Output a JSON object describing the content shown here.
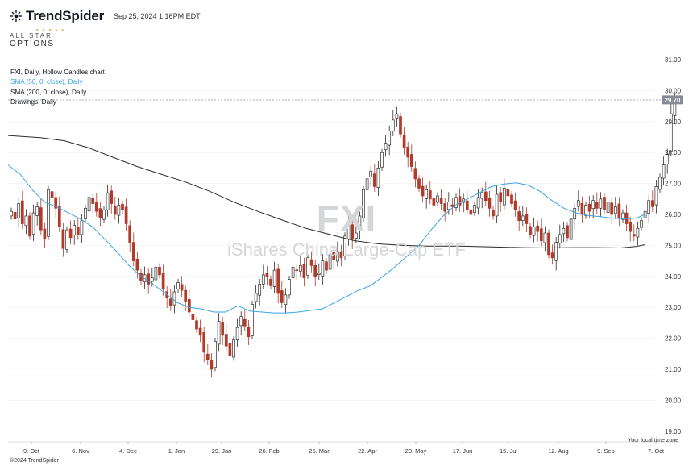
{
  "header": {
    "brand": "TrendSpider",
    "timestamp": "Sep 25, 2024 1:16PM EDT"
  },
  "badge": {
    "line1": "ALL STAR",
    "line2": "OPTIONS"
  },
  "legend": {
    "chart_title": "FXI, Daily, Hollow Candles chart",
    "sma50": "SMA (50, 0, close), Daily",
    "sma200": "SMA (200, 0, close), Daily",
    "drawings": "Drawings, Daily"
  },
  "watermark": {
    "ticker": "FXI",
    "name": "iShares China Large-Cap ETF"
  },
  "footer": {
    "local_time_zone": "Your local time zone",
    "copyright": "©2024 TrendSpider"
  },
  "colors": {
    "up": "#2d2d2d",
    "down": "#b13a2a",
    "sma50": "#3aa5e0",
    "sma200": "#2b2b2b",
    "price_badge": "#858a94"
  },
  "chart_data": {
    "type": "candlestick",
    "title": "FXI, Daily, Hollow Candles chart",
    "ylim": [
      18.8,
      31.4
    ],
    "y_ticks": [
      "31.00",
      "30.00",
      "29.00",
      "28.00",
      "27.00",
      "26.00",
      "25.00",
      "24.00",
      "23.00",
      "22.00",
      "21.00",
      "20.00",
      "19.00"
    ],
    "x_ticks": [
      "9. Oct",
      "6. Nov",
      "4. Dec",
      "1. Jan",
      "29. Jan",
      "26. Feb",
      "25. Mar",
      "22. Apr",
      "20. May",
      "17. Jun",
      "15. Jul",
      "12. Aug",
      "9. Sep",
      "7. Oct"
    ],
    "last_price": "29.70",
    "closes": [
      26.1,
      25.85,
      26.35,
      25.7,
      25.95,
      25.3,
      26.05,
      26.25,
      25.5,
      25.2,
      26.8,
      26.55,
      26.2,
      25.6,
      24.9,
      25.5,
      25.25,
      25.65,
      25.35,
      25.8,
      26.2,
      26.55,
      26.35,
      26.1,
      25.9,
      26.15,
      26.7,
      26.35,
      26.0,
      26.3,
      26.15,
      25.7,
      25.1,
      24.5,
      24.2,
      23.85,
      24.05,
      23.75,
      23.95,
      24.3,
      24.05,
      23.6,
      23.3,
      23.05,
      23.5,
      23.8,
      23.55,
      23.2,
      22.85,
      22.6,
      22.3,
      22.1,
      21.55,
      21.3,
      21.0,
      21.9,
      22.55,
      22.1,
      21.75,
      21.45,
      21.95,
      22.35,
      22.7,
      22.4,
      22.05,
      23.1,
      23.45,
      23.75,
      24.05,
      24.0,
      23.7,
      24.2,
      23.45,
      23.15,
      23.4,
      23.9,
      24.3,
      24.2,
      24.35,
      23.95,
      24.6,
      24.35,
      24.0,
      24.1,
      24.5,
      24.2,
      24.7,
      24.55,
      24.8,
      24.6,
      25.3,
      25.7,
      25.2,
      25.4,
      25.95,
      26.8,
      27.15,
      27.4,
      26.9,
      27.5,
      28.0,
      28.3,
      28.7,
      29.05,
      29.25,
      28.6,
      28.15,
      27.85,
      27.55,
      27.15,
      26.85,
      26.6,
      26.8,
      26.5,
      26.3,
      26.6,
      26.35,
      26.1,
      26.4,
      26.25,
      26.55,
      26.3,
      26.5,
      26.15,
      26.0,
      26.3,
      26.55,
      26.7,
      26.45,
      26.2,
      25.95,
      26.65,
      26.4,
      26.85,
      26.6,
      26.35,
      26.15,
      25.8,
      25.95,
      25.7,
      25.35,
      25.6,
      25.45,
      25.15,
      25.4,
      24.7,
      24.6,
      25.1,
      25.35,
      25.55,
      25.25,
      25.85,
      26.2,
      26.45,
      26.0,
      26.3,
      26.1,
      26.45,
      26.2,
      26.5,
      26.15,
      26.4,
      26.0,
      26.25,
      25.9,
      26.05,
      25.7,
      25.45,
      25.3,
      25.55,
      25.8,
      26.1,
      26.45,
      26.25,
      26.9,
      27.2,
      27.6,
      27.95,
      29.25,
      29.7
    ],
    "sma50": [
      [
        0,
        27.6
      ],
      [
        15,
        27.3
      ],
      [
        30,
        26.8
      ],
      [
        45,
        26.4
      ],
      [
        60,
        26.25
      ],
      [
        75,
        26.05
      ],
      [
        90,
        25.85
      ],
      [
        105,
        25.6
      ],
      [
        120,
        25.2
      ],
      [
        135,
        24.8
      ],
      [
        150,
        24.35
      ],
      [
        165,
        24.0
      ],
      [
        180,
        23.75
      ],
      [
        195,
        23.45
      ],
      [
        210,
        23.15
      ],
      [
        225,
        23.0
      ],
      [
        240,
        22.95
      ],
      [
        255,
        22.85
      ],
      [
        270,
        22.85
      ],
      [
        285,
        23.05
      ],
      [
        300,
        22.88
      ],
      [
        315,
        22.85
      ],
      [
        330,
        22.82
      ],
      [
        345,
        22.82
      ],
      [
        360,
        22.85
      ],
      [
        375,
        22.9
      ],
      [
        390,
        22.95
      ],
      [
        405,
        23.15
      ],
      [
        420,
        23.35
      ],
      [
        435,
        23.55
      ],
      [
        450,
        23.7
      ],
      [
        465,
        24.0
      ],
      [
        480,
        24.3
      ],
      [
        495,
        24.65
      ],
      [
        510,
        25.0
      ],
      [
        525,
        25.5
      ],
      [
        540,
        25.95
      ],
      [
        555,
        26.3
      ],
      [
        570,
        26.5
      ],
      [
        585,
        26.7
      ],
      [
        600,
        26.9
      ],
      [
        615,
        26.98
      ],
      [
        630,
        27.02
      ],
      [
        645,
        26.95
      ],
      [
        660,
        26.75
      ],
      [
        675,
        26.45
      ],
      [
        690,
        26.2
      ],
      [
        705,
        26.05
      ],
      [
        720,
        25.97
      ],
      [
        735,
        25.93
      ],
      [
        750,
        25.88
      ],
      [
        765,
        25.86
      ],
      [
        780,
        25.88
      ],
      [
        790,
        26.0
      ]
    ],
    "sma200": [
      [
        0,
        28.55
      ],
      [
        40,
        28.48
      ],
      [
        70,
        28.38
      ],
      [
        100,
        28.15
      ],
      [
        130,
        27.85
      ],
      [
        160,
        27.55
      ],
      [
        190,
        27.3
      ],
      [
        220,
        27.05
      ],
      [
        250,
        26.75
      ],
      [
        280,
        26.4
      ],
      [
        310,
        26.1
      ],
      [
        340,
        25.82
      ],
      [
        370,
        25.55
      ],
      [
        400,
        25.35
      ],
      [
        430,
        25.15
      ],
      [
        460,
        25.05
      ],
      [
        490,
        25.0
      ],
      [
        520,
        24.98
      ],
      [
        560,
        24.98
      ],
      [
        600,
        24.95
      ],
      [
        640,
        24.93
      ],
      [
        670,
        24.92
      ],
      [
        700,
        24.93
      ],
      [
        730,
        24.93
      ],
      [
        760,
        24.92
      ],
      [
        780,
        24.97
      ],
      [
        790,
        25.02
      ]
    ]
  }
}
